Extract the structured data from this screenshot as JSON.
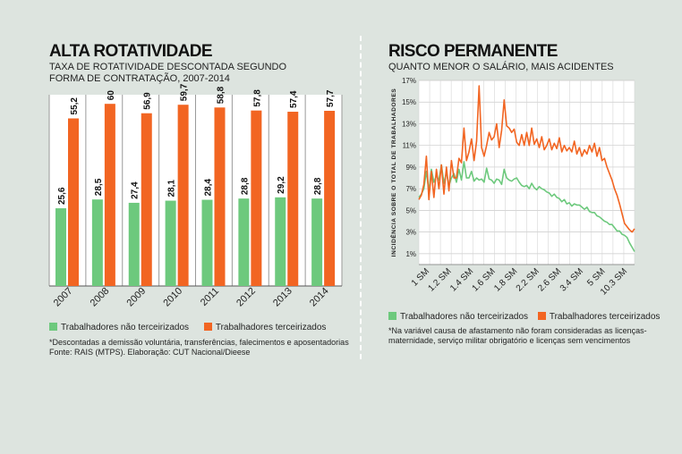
{
  "left": {
    "title": "ALTA ROTATIVIDADE",
    "subtitle_line1": "TAXA DE ROTATIVIDADE DESCONTADA SEGUNDO",
    "subtitle_line2": "FORMA DE CONTRATAÇÃO, 2007-2014",
    "legend_a": "Trabalhadores não terceirizados",
    "legend_b": "Trabalhadores terceirizados",
    "note_line1": "*Descontadas a demissão voluntária, transferências, falecimentos e aposentadorias",
    "note_line2": "Fonte: RAIS (MTPS). Elaboração: CUT Nacional/Dieese"
  },
  "right": {
    "title": "RISCO PERMANENTE",
    "subtitle": "QUANTO MENOR O SALÁRIO, MAIS ACIDENTES",
    "legend_a": "Trabalhadores não terceirizados",
    "legend_b": "Trabalhadores terceirizados",
    "note_line1": "*Na variável causa de afastamento não foram consideradas as licenças-",
    "note_line2": "maternidade, serviço militar obrigatório e licenças sem vencimentos"
  },
  "colors": {
    "green": "#6dc97d",
    "orange": "#f26522",
    "background": "#dde4df",
    "panel": "#ffffff",
    "grid": "#9a9a9a"
  },
  "chart_data": [
    {
      "type": "bar",
      "title": "ALTA ROTATIVIDADE",
      "categories": [
        "2007",
        "2008",
        "2009",
        "2010",
        "2011",
        "2012",
        "2013",
        "2014"
      ],
      "series": [
        {
          "name": "Trabalhadores não terceirizados",
          "values": [
            25.6,
            28.5,
            27.4,
            28.1,
            28.4,
            28.8,
            29.2,
            28.8
          ],
          "labels": [
            "25,6",
            "28,5",
            "27,4",
            "28,1",
            "28,4",
            "28,8",
            "29,2",
            "28,8"
          ]
        },
        {
          "name": "Trabalhadores terceirizados",
          "values": [
            55.2,
            60,
            56.9,
            59.7,
            58.8,
            57.8,
            57.4,
            57.7
          ],
          "labels": [
            "55,2",
            "60",
            "56,9",
            "59,7",
            "58,8",
            "57,8",
            "57,4",
            "57,7"
          ]
        }
      ],
      "ylim": [
        0,
        63
      ],
      "grid": true
    },
    {
      "type": "line",
      "title": "RISCO PERMANENTE",
      "ylabel": "INCIDÊNCIA SOBRE O TOTAL DE TRABALHADORES",
      "ylim": [
        0,
        17
      ],
      "y_ticks": [
        "1%",
        "3%",
        "5%",
        "7%",
        "9%",
        "11%",
        "13%",
        "15%",
        "17%"
      ],
      "y_tick_values": [
        1,
        3,
        5,
        7,
        9,
        11,
        13,
        15,
        17
      ],
      "x_tick_labels": [
        "1 SM",
        "1.2 SM",
        "1.4 SM",
        "1.6 SM",
        "1.8 SM",
        "2.2 SM",
        "2.6 SM",
        "3.4 SM",
        "5 SM",
        "10.3 SM"
      ],
      "grid": true,
      "series": [
        {
          "name": "Trabalhadores não terceirizados",
          "values": [
            6.2,
            6.5,
            7.0,
            8.6,
            6.8,
            8.8,
            7.6,
            8.2,
            7.8,
            9.2,
            7.5,
            8.5,
            7.3,
            8.0,
            8.4,
            7.6,
            8.8,
            7.8,
            9.5,
            8.0,
            8.0,
            8.6,
            7.7,
            8.0,
            7.8,
            7.9,
            7.6,
            8.9,
            7.9,
            7.8,
            7.5,
            7.9,
            7.8,
            7.4,
            8.8,
            8.0,
            7.8,
            7.7,
            7.9,
            8.0,
            7.6,
            7.3,
            7.2,
            7.3,
            7.0,
            7.5,
            7.1,
            6.9,
            7.2,
            7.0,
            6.9,
            6.7,
            6.6,
            6.3,
            6.5,
            6.2,
            6.1,
            5.8,
            6.0,
            5.6,
            5.7,
            5.4,
            5.6,
            5.5,
            5.5,
            5.3,
            5.1,
            5.3,
            4.9,
            4.8,
            4.8,
            4.5,
            4.4,
            4.2,
            4.0,
            3.9,
            3.7,
            3.7,
            3.4,
            3.1,
            3.1,
            2.8,
            2.7,
            2.5,
            2.0,
            1.6,
            1.2
          ]
        },
        {
          "name": "Trabalhadores terceirizados",
          "values": [
            6.0,
            6.4,
            7.4,
            10.0,
            6.0,
            8.6,
            6.2,
            8.8,
            7.0,
            9.2,
            6.5,
            9.0,
            6.8,
            9.6,
            8.0,
            8.0,
            9.8,
            9.4,
            12.6,
            9.6,
            10.4,
            11.6,
            9.6,
            11.4,
            16.5,
            10.8,
            10.0,
            11.0,
            12.2,
            11.5,
            11.8,
            13.0,
            10.8,
            12.4,
            15.2,
            12.8,
            12.6,
            12.2,
            12.5,
            11.3,
            11.0,
            12.0,
            11.0,
            12.2,
            11.0,
            12.6,
            11.1,
            11.6,
            10.8,
            11.8,
            10.6,
            11.0,
            11.6,
            10.6,
            11.2,
            10.7,
            11.7,
            10.4,
            11.0,
            10.5,
            10.8,
            10.4,
            11.4,
            10.2,
            10.8,
            10.0,
            10.6,
            10.2,
            11.0,
            10.4,
            11.2,
            10.0,
            10.8,
            9.6,
            9.8,
            9.0,
            8.4,
            7.8,
            7.0,
            6.4,
            5.6,
            4.7,
            3.8,
            3.5,
            3.2,
            3.0,
            3.3
          ]
        }
      ]
    }
  ]
}
